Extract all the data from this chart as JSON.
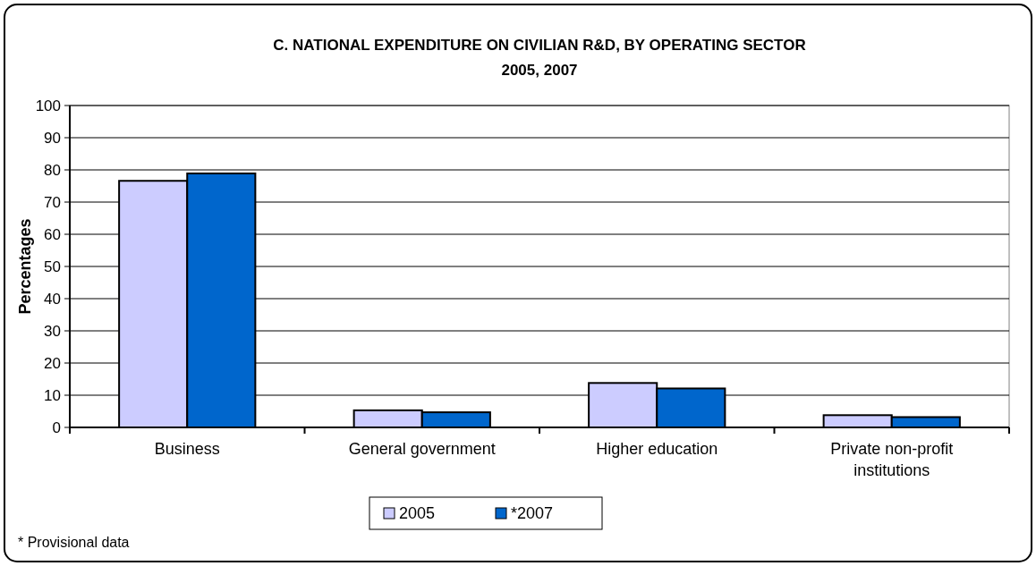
{
  "chart_data": {
    "type": "bar",
    "title": "C. NATIONAL EXPENDITURE ON CIVILIAN R&D, BY OPERATING SECTOR",
    "subtitle": "2005, 2007",
    "ylabel": "Percentages",
    "categories": [
      "Business",
      "General government",
      "Higher education",
      "Private non-profit institutions"
    ],
    "series": [
      {
        "name": "2005",
        "color": "#ccccff",
        "values": [
          76.6,
          5.3,
          13.8,
          3.8
        ]
      },
      {
        "name": "*2007",
        "color": "#0066cc",
        "values": [
          78.9,
          4.7,
          12.1,
          3.2
        ]
      }
    ],
    "ylim": [
      0,
      100
    ],
    "yticks": [
      0,
      10,
      20,
      30,
      40,
      50,
      60,
      70,
      80,
      90,
      100
    ],
    "grid": "y",
    "legend": "bottom",
    "annotations": [
      "* Provisional data"
    ]
  }
}
